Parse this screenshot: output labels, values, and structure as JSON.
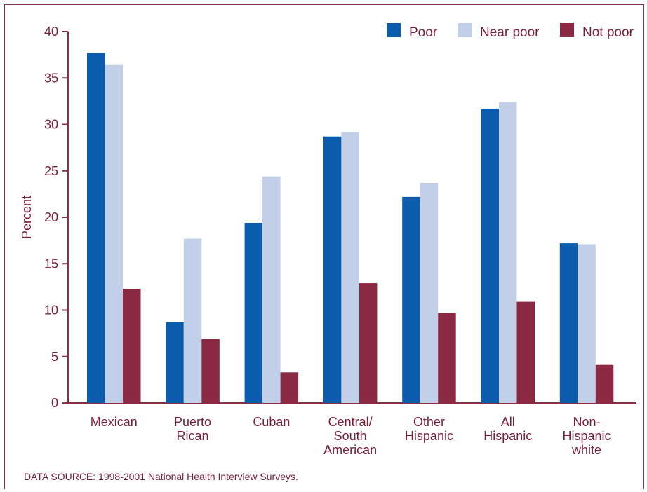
{
  "chart_data": {
    "type": "bar",
    "title": "",
    "xlabel": "",
    "ylabel": "Percent",
    "ylim": [
      0,
      40
    ],
    "yticks": [
      0,
      5,
      10,
      15,
      20,
      25,
      30,
      35,
      40
    ],
    "grid": false,
    "legend_position": "top-right",
    "categories": [
      [
        "Mexican"
      ],
      [
        "Puerto",
        "Rican"
      ],
      [
        "Cuban"
      ],
      [
        "Central/",
        "South",
        "American"
      ],
      [
        "Other",
        "Hispanic"
      ],
      [
        "All",
        "Hispanic"
      ],
      [
        "Non-",
        "Hispanic",
        "white"
      ]
    ],
    "series": [
      {
        "name": "Poor",
        "color": "#0b5cad",
        "values": [
          37.7,
          8.7,
          19.4,
          28.7,
          22.2,
          31.7,
          17.2
        ]
      },
      {
        "name": "Near poor",
        "color": "#c2cfe8",
        "values": [
          36.4,
          17.7,
          24.4,
          29.2,
          23.7,
          32.4,
          17.1
        ]
      },
      {
        "name": "Not poor",
        "color": "#8b2842",
        "values": [
          12.3,
          6.9,
          3.3,
          12.9,
          9.7,
          10.9,
          4.1
        ]
      }
    ]
  },
  "footer": {
    "source": "DATA SOURCE: 1998-2001 National Health Interview Surveys."
  },
  "colors": {
    "axis": "#8b2e45",
    "text": "#7a1f38"
  }
}
